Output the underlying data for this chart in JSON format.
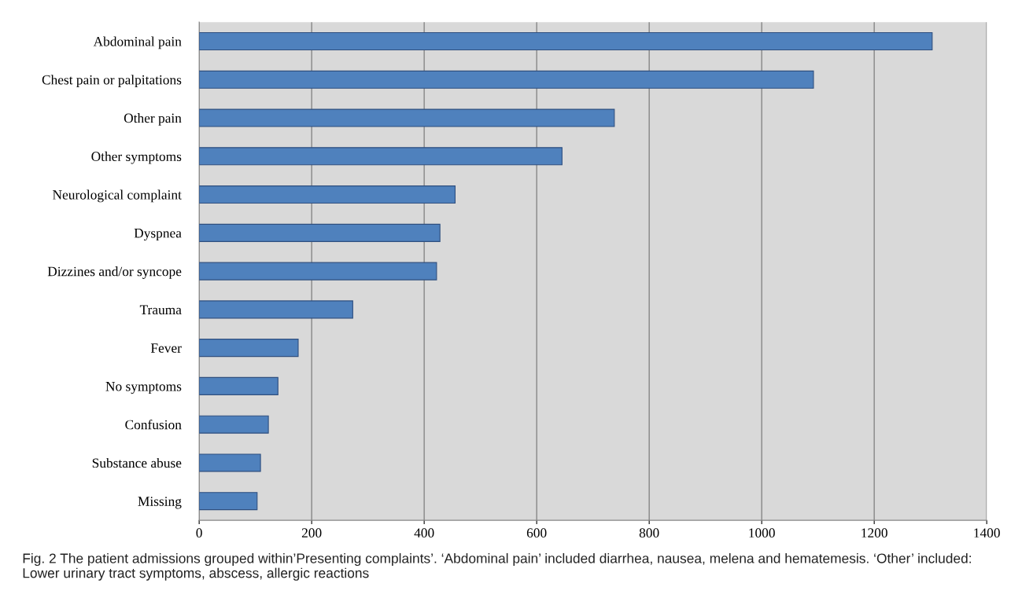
{
  "chart_data": {
    "type": "bar",
    "orientation": "horizontal",
    "categories": [
      "Abdominal pain",
      "Chest pain or palpitations",
      "Other pain",
      "Other symptoms",
      "Neurological complaint",
      "Dyspnea",
      "Dizzines and/or syncope",
      "Trauma",
      "Fever",
      "No symptoms",
      "Confusion",
      "Substance abuse",
      "Missing"
    ],
    "values": [
      1303,
      1092,
      738,
      645,
      455,
      428,
      422,
      273,
      176,
      140,
      123,
      109,
      103
    ],
    "color": "#4f81bd",
    "xlim": [
      0,
      1400
    ],
    "xticks": [
      0,
      200,
      400,
      600,
      800,
      1000,
      1200,
      1400
    ],
    "grid": "x",
    "legend": false,
    "annotations": [
      "Fig. 2 The patient admissions grouped within’Presenting complaints’. ‘Abdominal pain’ included diarrhea, nausea, melena and hematemesis. ‘Other’ included: Lower urinary tract symptoms, abscess, allergic reactions"
    ]
  }
}
